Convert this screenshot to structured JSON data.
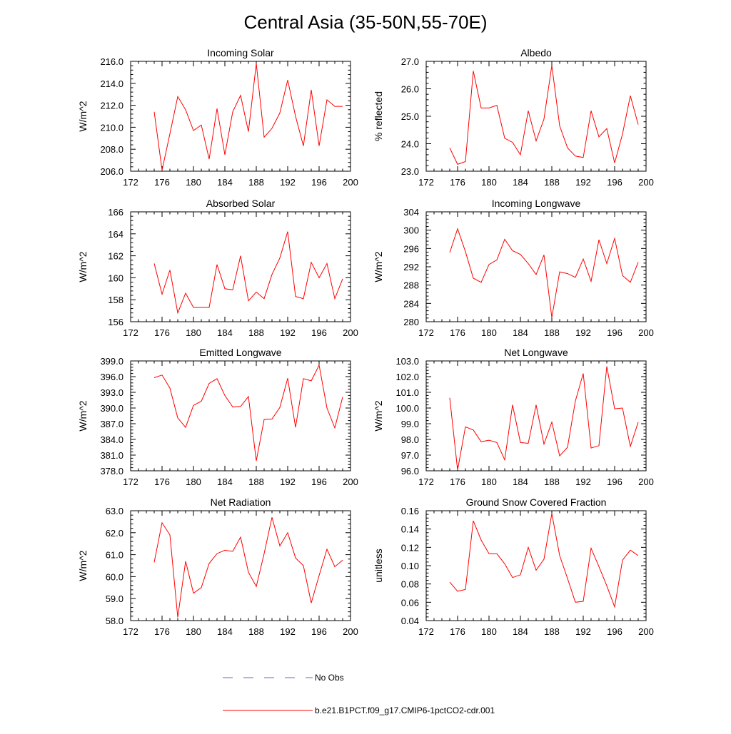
{
  "title": "Central Asia (35-50N,55-70E)",
  "legend": {
    "items": [
      {
        "label": "No Obs",
        "color": "#6666cc",
        "style": "dashed"
      },
      {
        "label": "b.e21.B1PCT.f09_g17.CMIP6-1pctCO2-cdr.001",
        "color": "#ff0000",
        "style": "solid"
      }
    ]
  },
  "chart_data": [
    {
      "type": "line",
      "title": "Incoming Solar",
      "ylabel": "W/m^2",
      "xlim": [
        172,
        200
      ],
      "xticks": [
        172,
        176,
        180,
        184,
        188,
        192,
        196,
        200
      ],
      "ylim": [
        206,
        216
      ],
      "yticks": [
        "206.0",
        "208.0",
        "210.0",
        "212.0",
        "214.0",
        "216.0"
      ],
      "color": "#ff0000",
      "x": [
        175,
        176,
        177,
        178,
        179,
        180,
        181,
        182,
        183,
        184,
        185,
        186,
        187,
        188,
        189,
        190,
        191,
        192,
        193,
        194,
        195,
        196,
        197,
        198,
        199
      ],
      "y": [
        211.4,
        206.1,
        209.4,
        212.8,
        211.6,
        209.7,
        210.2,
        207.1,
        211.7,
        207.5,
        211.4,
        212.9,
        209.6,
        215.8,
        209.1,
        209.9,
        211.3,
        214.3,
        211.0,
        208.3,
        213.4,
        208.3,
        212.5,
        211.9,
        211.9
      ]
    },
    {
      "type": "line",
      "title": "Albedo",
      "ylabel": "% reflected",
      "xlim": [
        172,
        200
      ],
      "xticks": [
        172,
        176,
        180,
        184,
        188,
        192,
        196,
        200
      ],
      "ylim": [
        23,
        27
      ],
      "yticks": [
        "23.0",
        "24.0",
        "25.0",
        "26.0",
        "27.0"
      ],
      "color": "#ff0000",
      "x": [
        175,
        176,
        177,
        178,
        179,
        180,
        181,
        182,
        183,
        184,
        185,
        186,
        187,
        188,
        189,
        190,
        191,
        192,
        193,
        194,
        195,
        196,
        197,
        198,
        199
      ],
      "y": [
        23.85,
        23.25,
        23.35,
        26.65,
        25.3,
        25.3,
        25.4,
        24.2,
        24.05,
        23.6,
        25.2,
        24.1,
        24.9,
        26.85,
        24.65,
        23.85,
        23.55,
        23.5,
        25.2,
        24.25,
        24.55,
        23.3,
        24.35,
        25.75,
        24.7
      ]
    },
    {
      "type": "line",
      "title": "Absorbed Solar",
      "ylabel": "W/m^2",
      "xlim": [
        172,
        200
      ],
      "xticks": [
        172,
        176,
        180,
        184,
        188,
        192,
        196,
        200
      ],
      "ylim": [
        156,
        166
      ],
      "yticks": [
        "156",
        "158",
        "160",
        "162",
        "164",
        "166"
      ],
      "color": "#ff0000",
      "x": [
        175,
        176,
        177,
        178,
        179,
        180,
        181,
        182,
        183,
        184,
        185,
        186,
        187,
        188,
        189,
        190,
        191,
        192,
        193,
        194,
        195,
        196,
        197,
        198,
        199
      ],
      "y": [
        161.3,
        158.5,
        160.7,
        156.8,
        158.6,
        157.3,
        157.3,
        157.3,
        161.2,
        159.0,
        158.9,
        162.0,
        157.9,
        158.7,
        158.1,
        160.3,
        161.8,
        164.2,
        158.3,
        158.1,
        161.4,
        160.0,
        161.3,
        158.1,
        159.9
      ]
    },
    {
      "type": "line",
      "title": "Incoming Longwave",
      "ylabel": "W/m^2",
      "xlim": [
        172,
        200
      ],
      "xticks": [
        172,
        176,
        180,
        184,
        188,
        192,
        196,
        200
      ],
      "ylim": [
        280,
        304
      ],
      "yticks": [
        "280",
        "284",
        "288",
        "292",
        "296",
        "300",
        "304"
      ],
      "color": "#ff0000",
      "x": [
        175,
        176,
        177,
        178,
        179,
        180,
        181,
        182,
        183,
        184,
        185,
        186,
        187,
        188,
        189,
        190,
        191,
        192,
        193,
        194,
        195,
        196,
        197,
        198,
        199
      ],
      "y": [
        295.1,
        300.3,
        295.3,
        289.5,
        288.6,
        292.5,
        293.5,
        298.0,
        295.5,
        294.7,
        292.7,
        290.3,
        294.6,
        280.9,
        290.9,
        290.5,
        289.7,
        293.7,
        288.8,
        297.9,
        292.7,
        298.2,
        290.1,
        288.6,
        293.0
      ]
    },
    {
      "type": "line",
      "title": "Emitted Longwave",
      "ylabel": "W/m^2",
      "xlim": [
        172,
        200
      ],
      "xticks": [
        172,
        176,
        180,
        184,
        188,
        192,
        196,
        200
      ],
      "ylim": [
        378,
        399
      ],
      "yticks": [
        "378.0",
        "381.0",
        "384.0",
        "387.0",
        "390.0",
        "393.0",
        "396.0",
        "399.0"
      ],
      "color": "#ff0000",
      "x": [
        175,
        176,
        177,
        178,
        179,
        180,
        181,
        182,
        183,
        184,
        185,
        186,
        187,
        188,
        189,
        190,
        191,
        192,
        193,
        194,
        195,
        196,
        197,
        198,
        199
      ],
      "y": [
        395.8,
        396.3,
        393.8,
        388.1,
        386.3,
        390.5,
        391.3,
        394.7,
        395.6,
        392.4,
        390.2,
        390.3,
        392.2,
        379.9,
        387.8,
        387.9,
        390.1,
        395.7,
        386.3,
        395.6,
        395.2,
        398.2,
        390.0,
        386.2,
        392.1
      ]
    },
    {
      "type": "line",
      "title": "Net Longwave",
      "ylabel": "W/m^2",
      "xlim": [
        172,
        200
      ],
      "xticks": [
        172,
        176,
        180,
        184,
        188,
        192,
        196,
        200
      ],
      "ylim": [
        96,
        103
      ],
      "yticks": [
        "96.0",
        "97.0",
        "98.0",
        "99.0",
        "100.0",
        "101.0",
        "102.0",
        "103.0"
      ],
      "color": "#ff0000",
      "x": [
        175,
        176,
        177,
        178,
        179,
        180,
        181,
        182,
        183,
        184,
        185,
        186,
        187,
        188,
        189,
        190,
        191,
        192,
        193,
        194,
        195,
        196,
        197,
        198,
        199
      ],
      "y": [
        100.65,
        96.05,
        98.8,
        98.6,
        97.85,
        97.95,
        97.8,
        96.7,
        100.2,
        97.8,
        97.75,
        100.2,
        97.7,
        99.1,
        96.95,
        97.5,
        100.45,
        102.2,
        97.45,
        97.6,
        102.65,
        99.95,
        100.0,
        97.55,
        99.1
      ]
    },
    {
      "type": "line",
      "title": "Net Radiation",
      "ylabel": "W/m^2",
      "xlim": [
        172,
        200
      ],
      "xticks": [
        172,
        176,
        180,
        184,
        188,
        192,
        196,
        200
      ],
      "ylim": [
        58,
        63
      ],
      "yticks": [
        "58.0",
        "59.0",
        "60.0",
        "61.0",
        "62.0",
        "63.0"
      ],
      "color": "#ff0000",
      "x": [
        175,
        176,
        177,
        178,
        179,
        180,
        181,
        182,
        183,
        184,
        185,
        186,
        187,
        188,
        189,
        190,
        191,
        192,
        193,
        194,
        195,
        196,
        197,
        198,
        199
      ],
      "y": [
        60.65,
        62.45,
        61.9,
        58.15,
        60.7,
        59.25,
        59.5,
        60.6,
        61.05,
        61.2,
        61.15,
        61.8,
        60.2,
        59.55,
        61.05,
        62.7,
        61.4,
        62.0,
        60.85,
        60.5,
        58.8,
        60.05,
        61.25,
        60.45,
        60.75
      ]
    },
    {
      "type": "line",
      "title": "Ground Snow Covered Fraction",
      "ylabel": "unitless",
      "xlim": [
        172,
        200
      ],
      "xticks": [
        172,
        176,
        180,
        184,
        188,
        192,
        196,
        200
      ],
      "ylim": [
        0.04,
        0.16
      ],
      "yticks": [
        "0.04",
        "0.06",
        "0.08",
        "0.10",
        "0.12",
        "0.14",
        "0.16"
      ],
      "color": "#ff0000",
      "x": [
        175,
        176,
        177,
        178,
        179,
        180,
        181,
        182,
        183,
        184,
        185,
        186,
        187,
        188,
        189,
        190,
        191,
        192,
        193,
        194,
        195,
        196,
        197,
        198,
        199
      ],
      "y": [
        0.082,
        0.072,
        0.074,
        0.149,
        0.128,
        0.113,
        0.113,
        0.102,
        0.087,
        0.09,
        0.12,
        0.095,
        0.107,
        0.157,
        0.111,
        0.086,
        0.06,
        0.061,
        0.119,
        0.099,
        0.078,
        0.055,
        0.106,
        0.117,
        0.111
      ]
    }
  ]
}
